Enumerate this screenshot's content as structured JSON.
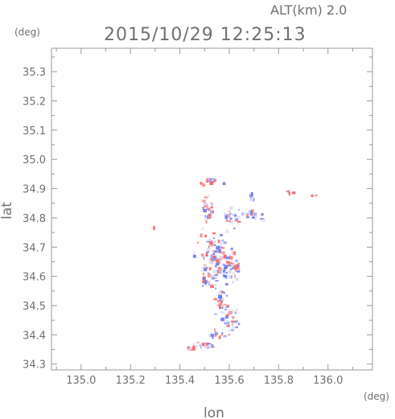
{
  "header": {
    "altitude_label": "ALT(km)  2.0",
    "timestamp": "2015/10/29 12:25:13"
  },
  "chart_data": {
    "type": "scatter",
    "xlabel": "lon",
    "ylabel": "lat",
    "x_unit": "(deg)",
    "y_unit": "(deg)",
    "xlim": [
      134.88,
      136.18
    ],
    "ylim": [
      34.28,
      35.38
    ],
    "x_ticks": [
      "135.0",
      "135.2",
      "135.4",
      "135.6",
      "135.8",
      "136.0"
    ],
    "y_ticks": [
      "34.3",
      "34.4",
      "34.5",
      "34.6",
      "34.7",
      "34.8",
      "34.9",
      "35.0",
      "35.1",
      "35.2",
      "35.3"
    ],
    "colors": {
      "positive": "#f26b6b",
      "negative": "#6f78f0",
      "neutral": "#d9dcf5"
    },
    "clusters": [
      {
        "lon": 135.52,
        "lat": 34.925,
        "spread": [
          0.035,
          0.008
        ],
        "n": 14
      },
      {
        "lon": 135.58,
        "lat": 34.915,
        "spread": [
          0.005,
          0.008
        ],
        "n": 3
      },
      {
        "lon": 135.51,
        "lat": 34.83,
        "spread": [
          0.025,
          0.035
        ],
        "n": 28
      },
      {
        "lon": 135.69,
        "lat": 34.87,
        "spread": [
          0.012,
          0.012
        ],
        "n": 6
      },
      {
        "lon": 135.61,
        "lat": 34.8,
        "spread": [
          0.03,
          0.035
        ],
        "n": 30
      },
      {
        "lon": 135.69,
        "lat": 34.81,
        "spread": [
          0.025,
          0.015
        ],
        "n": 18
      },
      {
        "lon": 135.735,
        "lat": 34.8,
        "spread": [
          0.01,
          0.01
        ],
        "n": 4
      },
      {
        "lon": 135.85,
        "lat": 34.895,
        "spread": [
          0.012,
          0.012
        ],
        "n": 5
      },
      {
        "lon": 135.94,
        "lat": 34.875,
        "spread": [
          0.008,
          0.005
        ],
        "n": 3
      },
      {
        "lon": 135.3,
        "lat": 34.765,
        "spread": [
          0.005,
          0.005
        ],
        "n": 2
      },
      {
        "lon": 135.54,
        "lat": 34.67,
        "spread": [
          0.055,
          0.06
        ],
        "n": 90
      },
      {
        "lon": 135.6,
        "lat": 34.62,
        "spread": [
          0.04,
          0.04
        ],
        "n": 45
      },
      {
        "lon": 135.52,
        "lat": 34.58,
        "spread": [
          0.03,
          0.03
        ],
        "n": 30
      },
      {
        "lon": 135.56,
        "lat": 34.52,
        "spread": [
          0.025,
          0.035
        ],
        "n": 30
      },
      {
        "lon": 135.61,
        "lat": 34.45,
        "spread": [
          0.025,
          0.035
        ],
        "n": 32
      },
      {
        "lon": 135.55,
        "lat": 34.4,
        "spread": [
          0.035,
          0.012
        ],
        "n": 18
      },
      {
        "lon": 135.5,
        "lat": 34.365,
        "spread": [
          0.04,
          0.01
        ],
        "n": 22
      },
      {
        "lon": 135.44,
        "lat": 34.355,
        "spread": [
          0.02,
          0.006
        ],
        "n": 10
      }
    ]
  }
}
